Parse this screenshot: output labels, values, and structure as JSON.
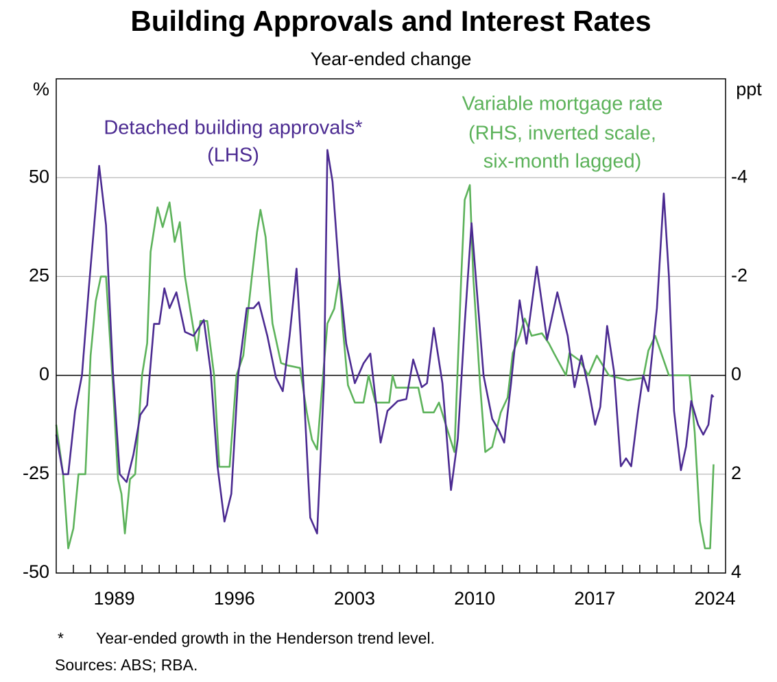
{
  "chart_data": {
    "type": "line",
    "title": "Building Approvals and Interest Rates",
    "subtitle": "Year-ended change",
    "ylabel": "%",
    "y2label": "ppt",
    "annotations": [
      "(LHS)",
      "(RHS, inverted scale,",
      "six-month lagged)"
    ],
    "footnotes": [
      {
        "marker": "*",
        "text": "Year-ended growth in the Henderson trend level."
      },
      "Sources: ABS; RBA."
    ],
    "xlim": [
      1986,
      2025
    ],
    "xticks": [
      1989,
      1996,
      2003,
      2010,
      2017,
      2024
    ],
    "ylim": [
      -50,
      75
    ],
    "yticks": [
      -50,
      -25,
      0,
      25,
      50
    ],
    "y2lim": [
      4,
      -6
    ],
    "y2ticks": [
      -4,
      -2,
      0,
      2,
      4
    ],
    "grid": true,
    "series": [
      {
        "name": "Detached building approvals*",
        "color": "#4b2a91",
        "axis": "y",
        "x": [
          1986.0,
          1986.4,
          1986.7,
          1987.1,
          1987.5,
          1987.9,
          1988.5,
          1988.9,
          1989.3,
          1989.7,
          1990.1,
          1990.5,
          1990.9,
          1991.3,
          1991.7,
          1992.0,
          1992.3,
          1992.6,
          1993.0,
          1993.5,
          1994.0,
          1994.6,
          1995.0,
          1995.4,
          1995.8,
          1996.2,
          1996.6,
          1997.1,
          1997.5,
          1997.8,
          1998.3,
          1998.8,
          1999.2,
          1999.6,
          2000.0,
          2000.4,
          2000.8,
          2001.2,
          2001.6,
          2001.8,
          2002.1,
          2002.5,
          2002.9,
          2003.4,
          2003.9,
          2004.3,
          2004.9,
          2005.3,
          2005.9,
          2006.4,
          2006.8,
          2007.3,
          2007.6,
          2008.0,
          2008.5,
          2009.0,
          2009.4,
          2009.8,
          2010.2,
          2010.5,
          2010.9,
          2011.4,
          2011.8,
          2012.1,
          2012.5,
          2013.0,
          2013.4,
          2014.0,
          2014.6,
          2015.2,
          2015.8,
          2016.2,
          2016.6,
          2017.0,
          2017.4,
          2017.7,
          2018.1,
          2018.5,
          2018.9,
          2019.2,
          2019.5,
          2019.9,
          2020.2,
          2020.5,
          2021.0,
          2021.4,
          2021.7,
          2022.0,
          2022.4,
          2022.7,
          2023.0,
          2023.4,
          2023.7,
          2024.0,
          2024.2,
          2024.3
        ],
        "values": [
          -15,
          -25,
          -25,
          -9,
          0,
          22,
          53,
          38,
          1,
          -25,
          -27,
          -20,
          -10,
          -7.5,
          13,
          13,
          22,
          17,
          21,
          11,
          10,
          14,
          1,
          -23,
          -37,
          -30,
          0,
          17,
          17,
          18.5,
          10,
          -0.5,
          -4,
          10,
          27,
          -2,
          -36,
          -40,
          -2,
          57,
          49,
          25,
          8,
          -2,
          3,
          5.5,
          -17,
          -9,
          -6.5,
          -6,
          4,
          -3,
          -2,
          12,
          -2,
          -29,
          -16,
          13,
          38.5,
          22,
          0,
          -11,
          -14,
          -17,
          -2,
          19,
          8,
          27.5,
          9,
          21,
          10,
          -3,
          5,
          -3,
          -12.5,
          -8,
          12.5,
          1,
          -23,
          -21,
          -23,
          -9,
          0,
          -4,
          17,
          46,
          25,
          -9,
          -24,
          -18,
          -6.5,
          -12.5,
          -15,
          -12.5,
          -5,
          -5.5
        ]
      },
      {
        "name": "Variable mortgage rate",
        "color": "#5cb25a",
        "axis": "y2",
        "x": [
          1986.0,
          1986.4,
          1986.7,
          1987.0,
          1987.3,
          1987.7,
          1988.0,
          1988.3,
          1988.6,
          1988.9,
          1989.3,
          1989.6,
          1989.8,
          1990.0,
          1990.3,
          1990.6,
          1991.0,
          1991.3,
          1991.5,
          1991.9,
          1992.2,
          1992.6,
          1992.9,
          1993.2,
          1993.5,
          1993.8,
          1994.2,
          1994.4,
          1994.8,
          1995.2,
          1995.5,
          1996.1,
          1996.5,
          1996.9,
          1997.4,
          1997.7,
          1997.9,
          1998.2,
          1998.6,
          1999.1,
          1999.5,
          2000.2,
          2000.6,
          2000.9,
          2001.2,
          2001.5,
          2001.8,
          2002.2,
          2002.5,
          2002.7,
          2003.0,
          2003.4,
          2003.9,
          2004.2,
          2004.6,
          2005.4,
          2005.6,
          2005.8,
          2007.1,
          2007.4,
          2008.0,
          2008.3,
          2008.7,
          2009.2,
          2009.6,
          2009.8,
          2010.1,
          2010.3,
          2010.7,
          2011.0,
          2011.4,
          2011.9,
          2012.3,
          2012.6,
          2013.0,
          2013.3,
          2013.7,
          2014.3,
          2014.7,
          2015.0,
          2015.7,
          2015.9,
          2016.5,
          2017.0,
          2017.5,
          2018.2,
          2019.3,
          2020.2,
          2020.5,
          2020.9,
          2021.3,
          2021.7,
          2022.9,
          2023.2,
          2023.5,
          2023.8,
          2024.1,
          2024.3
        ],
        "values": [
          1.0,
          2.0,
          3.5,
          3.1,
          2.0,
          2.0,
          -0.4,
          -1.5,
          -2.0,
          -2.0,
          0.2,
          2.1,
          2.4,
          3.2,
          2.1,
          2.0,
          0,
          -0.65,
          -2.5,
          -3.4,
          -3.0,
          -3.5,
          -2.7,
          -3.1,
          -2.0,
          -1.35,
          -0.5,
          -1.1,
          -1.1,
          0,
          1.85,
          1.85,
          0,
          -0.4,
          -2.0,
          -2.9,
          -3.35,
          -2.8,
          -1.05,
          -0.25,
          -0.2,
          -0.15,
          0.75,
          1.3,
          1.5,
          0.2,
          -1.05,
          -1.35,
          -2.0,
          -0.95,
          0.2,
          0.55,
          0.55,
          0,
          0.55,
          0.55,
          0,
          0.25,
          0.25,
          0.75,
          0.75,
          0.55,
          1.0,
          1.55,
          -2.0,
          -3.55,
          -3.85,
          -2.0,
          0.2,
          1.55,
          1.45,
          0.75,
          0.45,
          -0.45,
          -0.8,
          -1.15,
          -0.8,
          -0.85,
          -0.65,
          -0.45,
          0,
          -0.45,
          -0.3,
          0,
          -0.4,
          0,
          0.1,
          0.05,
          -0.5,
          -0.8,
          -0.4,
          0,
          0,
          1.15,
          2.95,
          3.5,
          3.5,
          1.8
        ]
      }
    ]
  }
}
